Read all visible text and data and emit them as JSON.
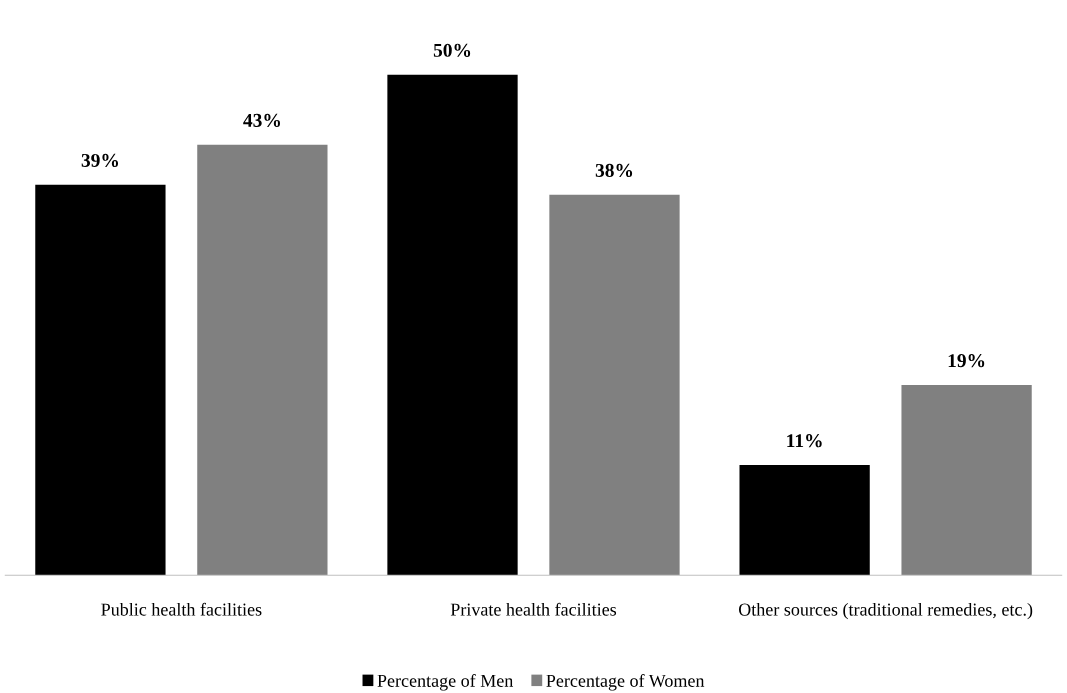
{
  "chart_data": {
    "type": "bar",
    "categories": [
      "Public health facilities",
      "Private health facilities",
      "Other sources (traditional remedies, etc.)"
    ],
    "series": [
      {
        "name": "Percentage of Men",
        "color": "#000000",
        "values": [
          39,
          50,
          11
        ],
        "value_labels": [
          "39%",
          "50%",
          "11%"
        ]
      },
      {
        "name": "Percentage of Women",
        "color": "#808080",
        "values": [
          43,
          38,
          19
        ],
        "value_labels": [
          "43%",
          "38%",
          "19%"
        ]
      }
    ],
    "legend": "bottom",
    "grid": false
  }
}
